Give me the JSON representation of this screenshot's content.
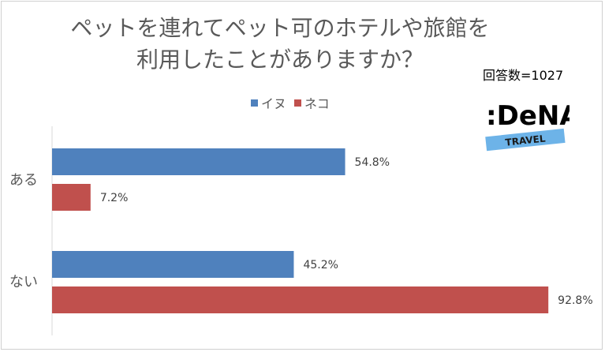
{
  "chart_data": {
    "type": "bar",
    "orientation": "horizontal",
    "title_lines": [
      "ペットを連れてペット可のホテルや旅館を",
      "利用したことがありますか？"
    ],
    "note": "回答数=1027",
    "categories": [
      "ある",
      "ない"
    ],
    "series": [
      {
        "name": "イヌ",
        "color": "#4F81BD",
        "values": [
          54.8,
          45.2
        ]
      },
      {
        "name": "ネコ",
        "color": "#C0504D",
        "values": [
          7.2,
          92.8
        ]
      }
    ],
    "value_labels": [
      [
        "54.8%",
        "45.2%"
      ],
      [
        "7.2%",
        "92.8%"
      ]
    ],
    "xlim": [
      0,
      100
    ],
    "grid": false,
    "legend_position": "top"
  },
  "logo": {
    "text": ":DeNA",
    "sub": "TRAVEL",
    "band_color": "#6DB3E8"
  }
}
